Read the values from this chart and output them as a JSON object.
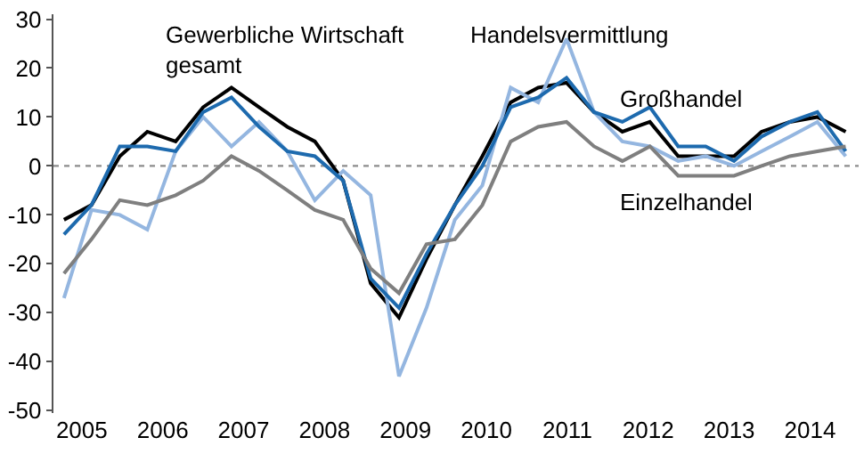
{
  "chart_data": {
    "type": "line",
    "x": [
      2004.78,
      2005.12,
      2005.47,
      2005.81,
      2006.16,
      2006.5,
      2006.85,
      2007.19,
      2007.54,
      2007.88,
      2008.23,
      2008.57,
      2008.92,
      2009.26,
      2009.61,
      2009.95,
      2010.3,
      2010.64,
      2010.99,
      2011.33,
      2011.68,
      2012.02,
      2012.37,
      2012.71,
      2013.06,
      2013.4,
      2013.75,
      2014.09,
      2014.44
    ],
    "series": [
      {
        "name": "Gewerbliche Wirtschaft gesamt",
        "color": "#000000",
        "values": [
          -11,
          -8,
          2,
          7,
          5,
          12,
          16,
          12,
          8,
          5,
          -3,
          -24,
          -31,
          -19,
          -8,
          2,
          13,
          16,
          17,
          11,
          7,
          9,
          2,
          2,
          2,
          7,
          9,
          10,
          7
        ]
      },
      {
        "name": "Handelsvermittlung",
        "color": "#94b6e0",
        "values": [
          -27,
          -9,
          -10,
          -13,
          3,
          10,
          4,
          9,
          3,
          -7,
          -1,
          -6,
          -43,
          -29,
          -11,
          -4,
          16,
          13,
          26,
          11,
          5,
          4,
          1,
          2,
          0,
          3,
          6,
          9,
          2
        ]
      },
      {
        "name": "Großhandel",
        "color": "#1d6aae",
        "values": [
          -14,
          -8,
          4,
          4,
          3,
          11,
          14,
          8,
          3,
          2,
          -3,
          -23,
          -29,
          -18,
          -8,
          0,
          12,
          14,
          18,
          11,
          9,
          12,
          4,
          4,
          1,
          6,
          9,
          11,
          3
        ]
      },
      {
        "name": "Einzelhandel",
        "color": "#7f7f7f",
        "values": [
          -22,
          -15,
          -7,
          -8,
          -6,
          -3,
          2,
          -1,
          -5,
          -9,
          -11,
          -21,
          -26,
          -16,
          -15,
          -8,
          5,
          8,
          9,
          4,
          1,
          4,
          -2,
          -2,
          -2,
          0,
          2,
          3,
          4
        ]
      }
    ],
    "xlim": [
      2004.65,
      2014.6
    ],
    "xticks": [
      2005,
      2006,
      2007,
      2008,
      2009,
      2010,
      2011,
      2012,
      2013,
      2014
    ],
    "ylim": [
      -50.5,
      31
    ],
    "yticks": [
      -50,
      -40,
      -30,
      -20,
      -10,
      0,
      10,
      20,
      30
    ],
    "ref_lines": [
      {
        "axis": "y",
        "value": 0,
        "color": "#8c8c8c",
        "line_style": "dotted"
      }
    ],
    "grid": false,
    "legend": false,
    "marker": "none",
    "line_style": "solid"
  }
}
